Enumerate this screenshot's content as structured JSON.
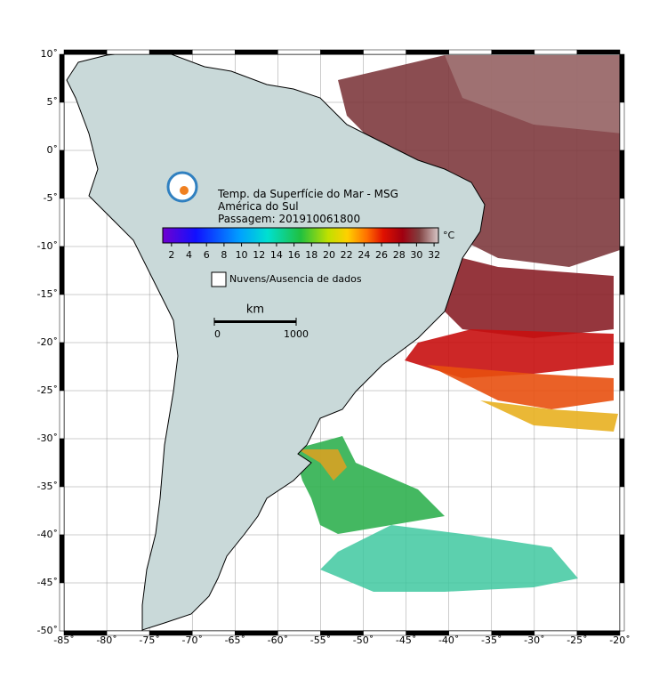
{
  "map": {
    "xlim": [
      -85,
      -20
    ],
    "ylim": [
      -50,
      10
    ],
    "xticks": [
      {
        "value": -85,
        "label": "-85˚"
      },
      {
        "value": -80,
        "label": "-80˚"
      },
      {
        "value": -75,
        "label": "-75˚"
      },
      {
        "value": -70,
        "label": "-70˚"
      },
      {
        "value": -65,
        "label": "-65˚"
      },
      {
        "value": -60,
        "label": "-60˚"
      },
      {
        "value": -55,
        "label": "-55˚"
      },
      {
        "value": -50,
        "label": "-50˚"
      },
      {
        "value": -45,
        "label": "-45˚"
      },
      {
        "value": -40,
        "label": "-40˚"
      },
      {
        "value": -35,
        "label": "-35˚"
      },
      {
        "value": -30,
        "label": "-30˚"
      },
      {
        "value": -25,
        "label": "-25˚"
      },
      {
        "value": -20,
        "label": "-20˚"
      }
    ],
    "yticks": [
      {
        "value": 10,
        "label": "10˚"
      },
      {
        "value": 5,
        "label": "5˚"
      },
      {
        "value": 0,
        "label": "0˚"
      },
      {
        "value": -5,
        "label": "-5˚"
      },
      {
        "value": -10,
        "label": "-10˚"
      },
      {
        "value": -15,
        "label": "-15˚"
      },
      {
        "value": -20,
        "label": "-20˚"
      },
      {
        "value": -25,
        "label": "-25˚"
      },
      {
        "value": -30,
        "label": "-30˚"
      },
      {
        "value": -35,
        "label": "-35˚"
      },
      {
        "value": -40,
        "label": "-40˚"
      },
      {
        "value": -45,
        "label": "-45˚"
      },
      {
        "value": -50,
        "label": "-50˚"
      }
    ]
  },
  "header": {
    "lines": [
      "Temp. da Superfície do Mar - MSG",
      "América do Sul",
      "Passagem: 201910061800"
    ]
  },
  "colorbar": {
    "unit": "°C",
    "clim": [
      1,
      32.5
    ],
    "ticks": [
      2,
      4,
      6,
      8,
      10,
      12,
      14,
      16,
      18,
      20,
      22,
      24,
      26,
      28,
      30,
      32
    ]
  },
  "legend": {
    "label": "Nuvens/Ausencia de dados"
  },
  "scale_bar": {
    "title": "km",
    "ticks": [
      0,
      1000
    ]
  }
}
